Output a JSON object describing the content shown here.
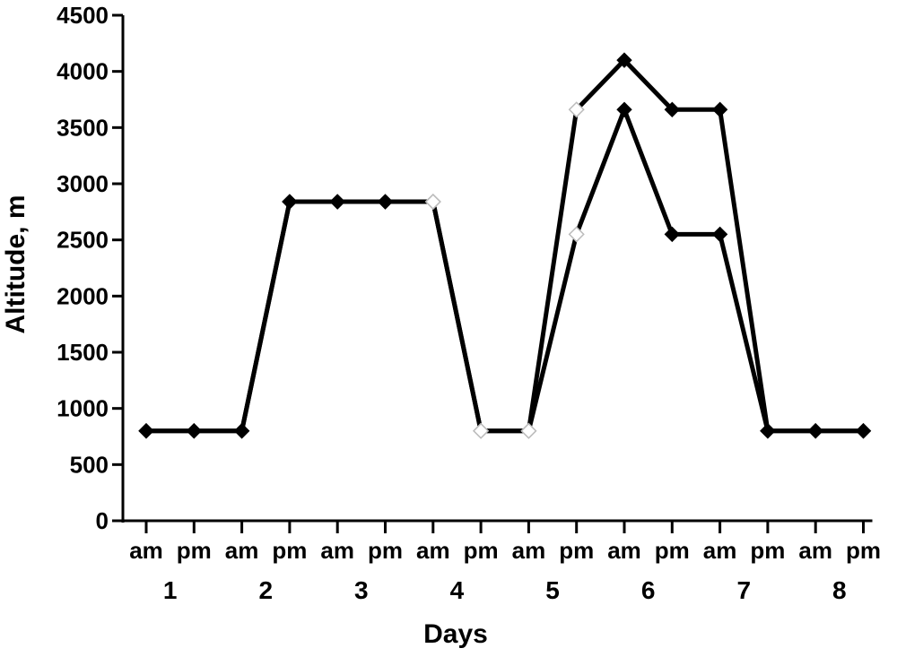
{
  "chart_data": {
    "type": "line",
    "xlabel": "Days",
    "ylabel": "Altitude, m",
    "ylim": [
      0,
      4500
    ],
    "yticks": [
      0,
      500,
      1000,
      1500,
      2000,
      2500,
      3000,
      3500,
      4000,
      4500
    ],
    "ytick_labels": [
      "0",
      "500",
      "1000",
      "1500",
      "2000",
      "2500",
      "3000",
      "3500",
      "4000",
      "4500"
    ],
    "categories": [
      "am",
      "pm",
      "am",
      "pm",
      "am",
      "pm",
      "am",
      "pm",
      "am",
      "pm",
      "am",
      "pm",
      "am",
      "pm",
      "am",
      "pm"
    ],
    "days": [
      "1",
      "2",
      "3",
      "4",
      "5",
      "6",
      "7",
      "8"
    ],
    "grid": false,
    "legend": "none",
    "series": [
      {
        "values": [
          800,
          800,
          800,
          2840,
          2840,
          2840,
          2840,
          800,
          800,
          3660,
          4100,
          3660,
          3660,
          800,
          800,
          800
        ]
      },
      {
        "values": [
          800,
          800,
          800,
          2840,
          2840,
          2840,
          2840,
          800,
          800,
          2550,
          3660,
          2550,
          2550,
          800,
          800,
          800
        ]
      }
    ],
    "marker_style": [
      "filled",
      "filled",
      "filled",
      "filled",
      "filled",
      "filled",
      "open",
      "open",
      "open",
      "open",
      "filled",
      "filled",
      "filled",
      "filled",
      "filled",
      "filled"
    ],
    "line_color": "#000000",
    "marker_color": "#000000",
    "open_marker_color": "#bbbbbb"
  }
}
